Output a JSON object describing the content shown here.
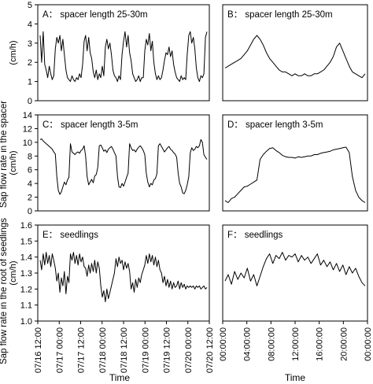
{
  "figure": {
    "ylabel_top": "Sap flow rate in the spacer",
    "ylabel_bottom": "Sap flow rate in the root of seedlings",
    "xlabel_left": "Time",
    "xlabel_right": "Time"
  },
  "chart_data": [
    {
      "id": "A",
      "type": "line",
      "title": "A： spacer length 25-30m",
      "ylabel": "(cm/h)",
      "ylim": [
        0,
        5
      ],
      "yticks": [
        "0",
        "1",
        "2",
        "3",
        "4",
        "5"
      ],
      "xticks": [],
      "series": [
        {
          "x": [
            0,
            0.1,
            0.2,
            0.3,
            0.4,
            0.5,
            0.6,
            0.7,
            0.8,
            0.9,
            1,
            1.1,
            1.2,
            1.3,
            1.4,
            1.5,
            1.6,
            1.7,
            1.8,
            1.9,
            2,
            2.1,
            2.2,
            2.3,
            2.4,
            2.5,
            2.6,
            2.7,
            2.8,
            2.9,
            3,
            3.1,
            3.2,
            3.3,
            3.4,
            3.5,
            3.6,
            3.7,
            3.8,
            3.9,
            4,
            4.1,
            4.2,
            4.3,
            4.4,
            4.5,
            4.6,
            4.7,
            4.8,
            4.9,
            5,
            5.1,
            5.2,
            5.3,
            5.4,
            5.5,
            5.6,
            5.7,
            5.8,
            5.9,
            6,
            6.1,
            6.2,
            6.3,
            6.4,
            6.5,
            6.6,
            6.7,
            6.8,
            6.9,
            7,
            7.1,
            7.2,
            7.3,
            7.4,
            7.5,
            7.6,
            7.7,
            7.8,
            7.9,
            8,
            8.1,
            8.2,
            8.3,
            8.4,
            8.5,
            8.6,
            8.7,
            8.8,
            8.9,
            9,
            9.1,
            9.2,
            9.3,
            9.4,
            9.5,
            9.6,
            9.7,
            9.8,
            9.9,
            10,
            10.1,
            10.2,
            10.3,
            10.4,
            10.5,
            10.6,
            10.7,
            10.8,
            10.9,
            11
          ],
          "values": [
            3.4,
            2.0,
            3.6,
            1.9,
            1.6,
            1.2,
            1.8,
            1.4,
            1.1,
            1.3,
            2.7,
            3.3,
            3.0,
            3.4,
            2.6,
            3.2,
            2.4,
            1.6,
            1.2,
            1.1,
            1.0,
            1.3,
            1.1,
            1.0,
            1.2,
            1.1,
            1.4,
            1.2,
            1.9,
            3.1,
            3.4,
            2.6,
            3.3,
            2.5,
            2.2,
            1.5,
            1.2,
            1.6,
            1.1,
            1.4,
            1.2,
            1.8,
            1.3,
            2.8,
            3.2,
            2.7,
            3.0,
            2.4,
            1.6,
            1.3,
            1.2,
            1.0,
            1.3,
            1.1,
            2.4,
            3.1,
            3.6,
            2.8,
            3.4,
            2.5,
            2.1,
            1.4,
            1.2,
            1.0,
            1.1,
            1.3,
            1.0,
            1.2,
            1.2,
            2.6,
            3.2,
            2.9,
            3.5,
            2.6,
            3.1,
            2.0,
            1.4,
            1.1,
            1.3,
            1.1,
            1.2,
            1.6,
            2.1,
            2.5,
            2.4,
            2.8,
            2.3,
            2.6,
            1.9,
            1.5,
            1.2,
            1.1,
            1.0,
            1.3,
            1.1,
            1.2,
            1.1,
            2.4,
            3.4,
            3.6,
            3.0,
            3.3,
            2.7,
            1.7,
            1.2,
            1.0,
            1.3,
            1.2,
            1.4,
            3.3,
            3.6
          ]
        }
      ]
    },
    {
      "id": "B",
      "type": "line",
      "title": "B： spacer length 25-30m",
      "ylabel": "",
      "ylim": [
        0,
        5
      ],
      "yticks": [],
      "xticks": [],
      "series": [
        {
          "x": [
            0,
            0.25,
            0.5,
            0.75,
            1,
            1.25,
            1.5,
            1.75,
            2,
            2.25,
            2.5,
            2.75,
            3,
            3.25,
            3.5,
            3.75,
            4,
            4.25,
            4.5,
            4.75,
            5,
            5.25,
            5.5,
            5.75,
            6,
            6.25,
            6.5,
            6.75,
            7,
            7.25,
            7.5,
            7.75,
            8,
            8.25,
            8.5,
            8.75,
            9,
            9.25,
            9.5,
            9.75,
            10,
            10.25,
            10.5,
            10.75,
            11
          ],
          "values": [
            1.7,
            1.8,
            1.9,
            2.0,
            2.1,
            2.2,
            2.4,
            2.6,
            2.9,
            3.2,
            3.4,
            3.2,
            2.9,
            2.5,
            2.2,
            2.0,
            1.8,
            1.6,
            1.5,
            1.5,
            1.4,
            1.3,
            1.4,
            1.3,
            1.3,
            1.4,
            1.3,
            1.3,
            1.4,
            1.4,
            1.5,
            1.6,
            1.8,
            2.0,
            2.3,
            2.8,
            3.0,
            2.6,
            2.2,
            1.8,
            1.5,
            1.4,
            1.3,
            1.2,
            1.4
          ]
        }
      ]
    },
    {
      "id": "C",
      "type": "line",
      "title": "C： spacer length 3-5m",
      "ylabel": "(cm/h)",
      "ylim": [
        0,
        14
      ],
      "yticks": [
        "0",
        "2",
        "4",
        "6",
        "8",
        "10",
        "12",
        "14"
      ],
      "xticks": [],
      "series": [
        {
          "x": [
            0,
            0.1,
            0.2,
            0.3,
            0.4,
            0.5,
            0.6,
            0.7,
            0.8,
            0.9,
            1,
            1.1,
            1.2,
            1.3,
            1.4,
            1.5,
            1.6,
            1.7,
            1.8,
            1.9,
            2,
            2.1,
            2.2,
            2.3,
            2.4,
            2.5,
            2.6,
            2.7,
            2.8,
            2.9,
            3,
            3.1,
            3.2,
            3.3,
            3.4,
            3.5,
            3.6,
            3.7,
            3.8,
            3.9,
            4,
            4.1,
            4.2,
            4.3,
            4.4,
            4.5,
            4.6,
            4.7,
            4.8,
            4.9,
            5,
            5.1,
            5.2,
            5.3,
            5.4,
            5.5,
            5.6,
            5.7,
            5.8,
            5.9,
            6,
            6.1,
            6.2,
            6.3,
            6.4,
            6.5,
            6.6,
            6.7,
            6.8,
            6.9,
            7,
            7.1,
            7.2,
            7.3,
            7.4,
            7.5,
            7.6,
            7.7,
            7.8,
            7.9,
            8,
            8.1,
            8.2,
            8.3,
            8.4,
            8.5,
            8.6,
            8.7,
            8.8,
            8.9,
            9,
            9.1,
            9.2,
            9.3,
            9.4,
            9.5,
            9.6,
            9.7,
            9.8,
            9.9,
            10,
            10.1,
            10.2,
            10.3,
            10.4,
            10.5,
            10.6,
            10.7,
            10.8,
            10.9,
            11
          ],
          "values": [
            10.4,
            10.5,
            10.2,
            10.0,
            9.8,
            9.6,
            9.4,
            9.2,
            9.0,
            8.6,
            8.3,
            5.0,
            3.0,
            2.4,
            2.8,
            3.5,
            4.2,
            3.8,
            4.5,
            4.9,
            9.8,
            8.6,
            8.4,
            8.2,
            8.5,
            8.6,
            8.4,
            8.8,
            9.0,
            9.5,
            8.0,
            5.0,
            3.8,
            4.2,
            4.6,
            4.1,
            5.1,
            5.3,
            6.3,
            9.5,
            9.6,
            9.2,
            8.7,
            8.9,
            8.5,
            9.0,
            9.2,
            9.4,
            9.0,
            8.5,
            8.0,
            5.0,
            3.5,
            3.4,
            4.0,
            3.6,
            4.2,
            4.9,
            5.5,
            9.8,
            9.2,
            8.8,
            8.9,
            8.6,
            9.0,
            9.3,
            9.5,
            9.2,
            8.8,
            8.2,
            5.5,
            4.2,
            3.5,
            4.0,
            3.8,
            4.5,
            4.7,
            5.4,
            9.5,
            9.8,
            9.4,
            9.0,
            8.6,
            8.9,
            9.2,
            9.4,
            9.0,
            8.8,
            8.5,
            8.3,
            7.8,
            5.5,
            4.0,
            3.5,
            2.6,
            2.5,
            3.0,
            3.8,
            5.0,
            8.5,
            9.2,
            8.8,
            9.0,
            9.4,
            9.2,
            9.5,
            10.4,
            10.0,
            8.2,
            7.8,
            7.5
          ]
        }
      ]
    },
    {
      "id": "D",
      "type": "line",
      "title": "D： spacer length 3-5m",
      "ylabel": "",
      "ylim": [
        0,
        14
      ],
      "yticks": [],
      "xticks": [],
      "series": [
        {
          "x": [
            0,
            0.25,
            0.5,
            0.75,
            1,
            1.25,
            1.5,
            1.75,
            2,
            2.25,
            2.5,
            2.75,
            3,
            3.25,
            3.5,
            3.75,
            4,
            4.25,
            4.5,
            4.75,
            5,
            5.25,
            5.5,
            5.75,
            6,
            6.25,
            6.5,
            6.75,
            7,
            7.25,
            7.5,
            7.75,
            8,
            8.25,
            8.5,
            8.75,
            9,
            9.25,
            9.5,
            9.75,
            10,
            10.25,
            10.5,
            10.75,
            11
          ],
          "values": [
            1.5,
            1.2,
            1.8,
            2.0,
            2.5,
            3.0,
            3.5,
            3.6,
            3.9,
            4.2,
            4.5,
            7.5,
            8.2,
            8.7,
            9.1,
            9.2,
            8.8,
            8.5,
            8.1,
            7.9,
            7.8,
            7.8,
            7.7,
            7.9,
            7.8,
            7.9,
            8.0,
            8.0,
            8.2,
            8.2,
            8.4,
            8.5,
            8.6,
            8.7,
            8.9,
            9.0,
            9.1,
            9.2,
            9.3,
            8.5,
            5.0,
            3.0,
            2.0,
            1.5,
            1.2
          ]
        }
      ]
    },
    {
      "id": "E",
      "type": "line",
      "title": "E： seedlings",
      "ylabel": "(cm/h)",
      "ylim": [
        1.0,
        1.6
      ],
      "yticks": [
        "1.0",
        "1.1",
        "1.2",
        "1.3",
        "1.4",
        "1.5",
        "1.6"
      ],
      "xticks": [
        "07/16 12:00",
        "07/17 00:00",
        "07/17 12:00",
        "07/18 00:00",
        "07/18 12:00",
        "07/19 00:00",
        "07/19 12:00",
        "07/20 00:00",
        "07/20 12:00"
      ],
      "series": [
        {
          "x": [
            0,
            0.1,
            0.2,
            0.3,
            0.4,
            0.5,
            0.6,
            0.7,
            0.8,
            0.9,
            1,
            1.1,
            1.2,
            1.3,
            1.4,
            1.5,
            1.6,
            1.7,
            1.8,
            1.9,
            2,
            2.1,
            2.2,
            2.3,
            2.4,
            2.5,
            2.6,
            2.7,
            2.8,
            2.9,
            3,
            3.1,
            3.2,
            3.3,
            3.4,
            3.5,
            3.6,
            3.7,
            3.8,
            3.9,
            4,
            4.1,
            4.2,
            4.3,
            4.4,
            4.5,
            4.6,
            4.7,
            4.8,
            4.9,
            5,
            5.1,
            5.2,
            5.3,
            5.4,
            5.5,
            5.6,
            5.7,
            5.8,
            5.9,
            6,
            6.1,
            6.2,
            6.3,
            6.4,
            6.5,
            6.6,
            6.7,
            6.8,
            6.9,
            7,
            7.1,
            7.2,
            7.3,
            7.4,
            7.5,
            7.6,
            7.7,
            7.8,
            7.9,
            8,
            8.1,
            8.2,
            8.3,
            8.4,
            8.5,
            8.6,
            8.7,
            8.8,
            8.9,
            9,
            9.1,
            9.2,
            9.3,
            9.4,
            9.5,
            9.6,
            9.7,
            9.8,
            9.9,
            10,
            10.1,
            10.2,
            10.3,
            10.4,
            10.5,
            10.6,
            10.7,
            10.8,
            10.9,
            11
          ],
          "values": [
            1.38,
            1.32,
            1.42,
            1.35,
            1.43,
            1.36,
            1.41,
            1.34,
            1.42,
            1.38,
            1.33,
            1.25,
            1.3,
            1.18,
            1.27,
            1.22,
            1.31,
            1.17,
            1.28,
            1.24,
            1.42,
            1.38,
            1.43,
            1.36,
            1.41,
            1.35,
            1.42,
            1.37,
            1.4,
            1.34,
            1.33,
            1.28,
            1.35,
            1.3,
            1.36,
            1.31,
            1.38,
            1.3,
            1.37,
            1.33,
            1.22,
            1.15,
            1.19,
            1.12,
            1.2,
            1.14,
            1.18,
            1.22,
            1.26,
            1.3,
            1.39,
            1.34,
            1.4,
            1.36,
            1.38,
            1.32,
            1.37,
            1.33,
            1.36,
            1.31,
            1.2,
            1.24,
            1.18,
            1.26,
            1.21,
            1.27,
            1.24,
            1.29,
            1.32,
            1.35,
            1.41,
            1.36,
            1.42,
            1.37,
            1.41,
            1.35,
            1.4,
            1.34,
            1.38,
            1.32,
            1.3,
            1.24,
            1.28,
            1.22,
            1.26,
            1.21,
            1.25,
            1.2,
            1.24,
            1.21,
            1.22,
            1.25,
            1.2,
            1.24,
            1.21,
            1.23,
            1.2,
            1.22,
            1.21,
            1.22,
            1.21,
            1.22,
            1.2,
            1.22,
            1.21,
            1.22,
            1.2,
            1.21,
            1.22,
            1.2,
            1.21
          ]
        }
      ]
    },
    {
      "id": "F",
      "type": "line",
      "title": "F： seedlings",
      "ylabel": "",
      "ylim": [
        1.0,
        1.6
      ],
      "yticks": [],
      "xticks": [
        "00:00:00",
        "04:00:00",
        "08:00:00",
        "12:00:00",
        "16:00:00",
        "20:00:00",
        "00:00:00"
      ],
      "series": [
        {
          "x": [
            0,
            0.25,
            0.5,
            0.75,
            1,
            1.25,
            1.5,
            1.75,
            2,
            2.25,
            2.5,
            2.75,
            3,
            3.25,
            3.5,
            3.75,
            4,
            4.25,
            4.5,
            4.75,
            5,
            5.25,
            5.5,
            5.75,
            6,
            6.25,
            6.5,
            6.75,
            7,
            7.25,
            7.5,
            7.75,
            8,
            8.25,
            8.5,
            8.75,
            9,
            9.25,
            9.5,
            9.75,
            10,
            10.25,
            10.5,
            10.75,
            11
          ],
          "values": [
            1.25,
            1.29,
            1.23,
            1.31,
            1.26,
            1.3,
            1.27,
            1.33,
            1.25,
            1.29,
            1.22,
            1.28,
            1.34,
            1.39,
            1.42,
            1.36,
            1.41,
            1.39,
            1.43,
            1.38,
            1.41,
            1.4,
            1.42,
            1.37,
            1.41,
            1.38,
            1.4,
            1.36,
            1.39,
            1.42,
            1.35,
            1.38,
            1.34,
            1.37,
            1.32,
            1.36,
            1.31,
            1.35,
            1.29,
            1.34,
            1.3,
            1.33,
            1.28,
            1.24,
            1.22
          ]
        }
      ]
    }
  ]
}
